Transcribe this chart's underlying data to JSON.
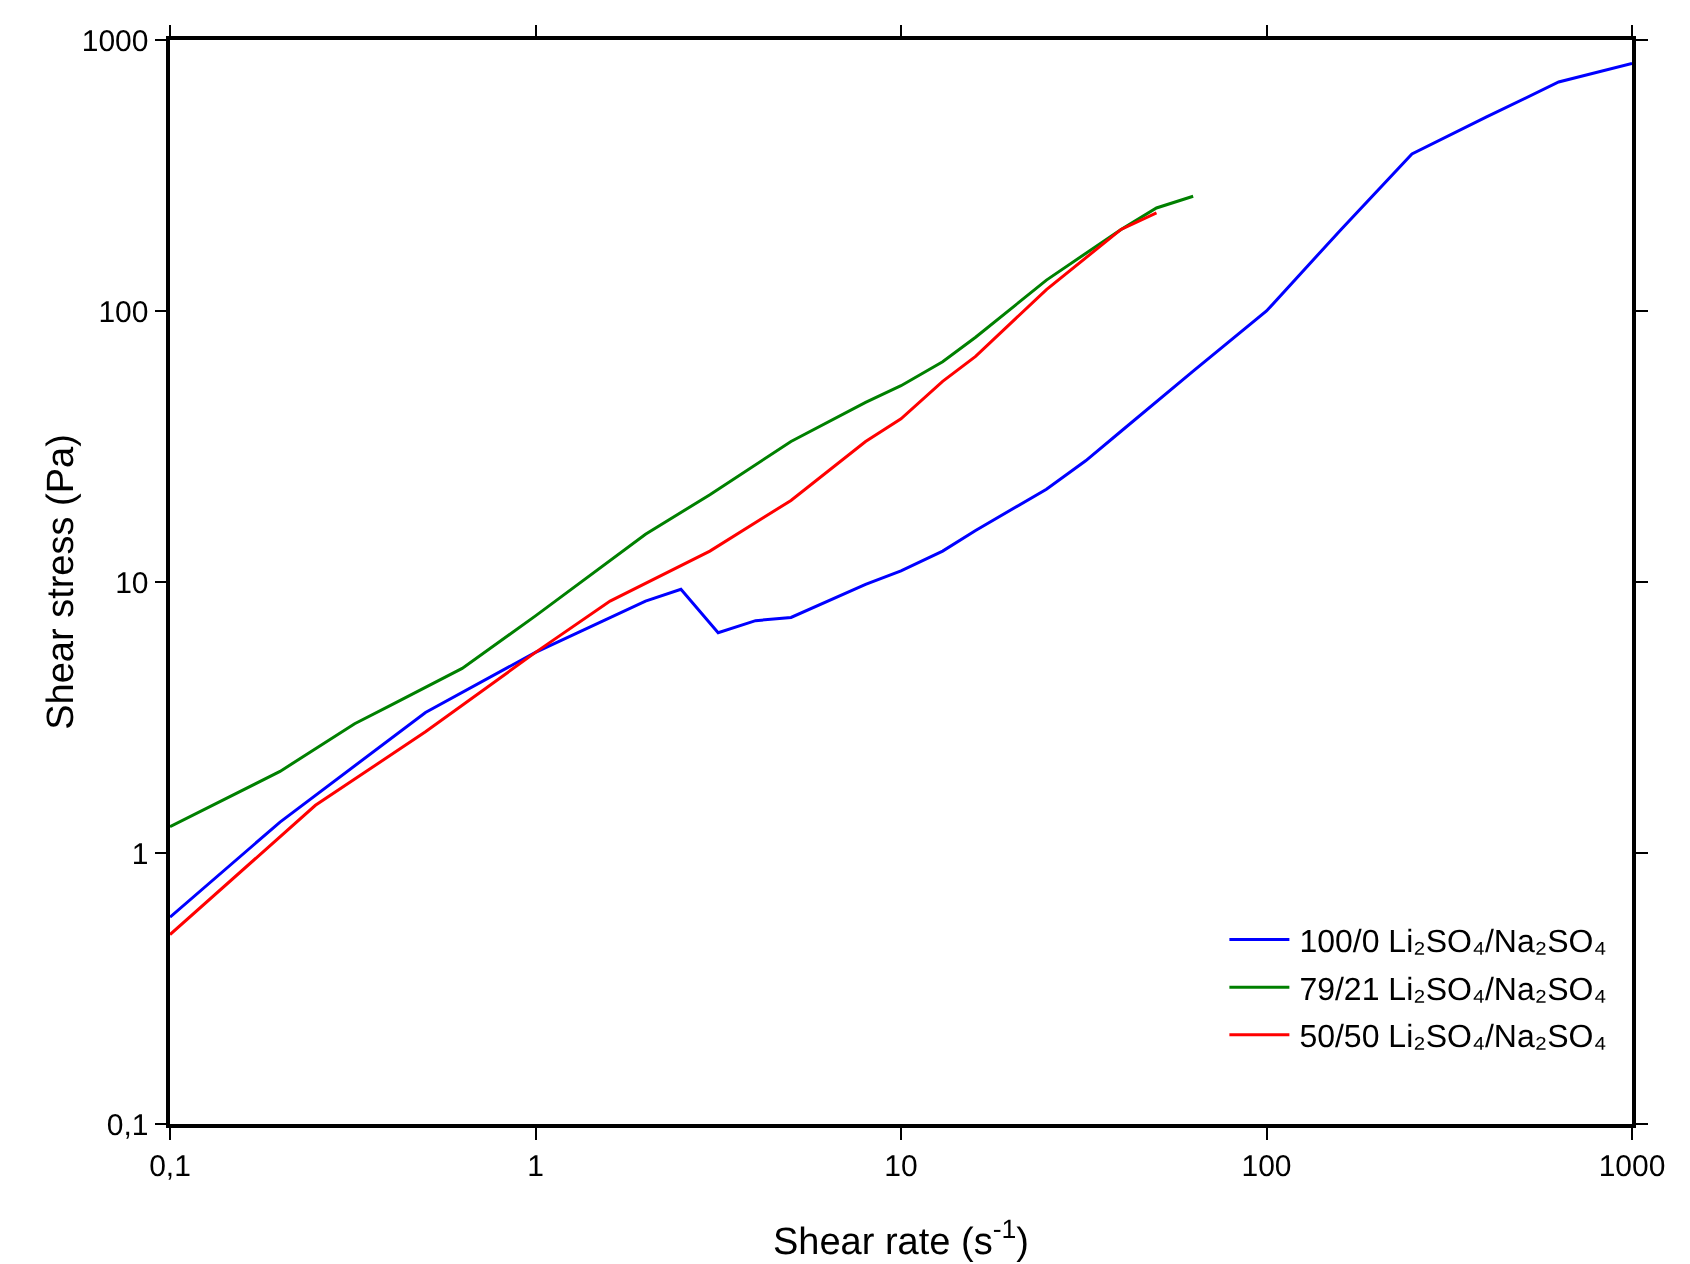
{
  "chart_data": {
    "type": "line",
    "xlabel": "Shear rate (s$^{-1}$)",
    "ylabel": "Shear stress (Pa)",
    "log": "xy",
    "grid": false,
    "legend": "bottom right",
    "line_style": "solid",
    "marker": "none",
    "xlim": [
      0.1,
      1000
    ],
    "ylim": [
      0.1,
      1000
    ],
    "xticks": [
      {
        "value": 0.1,
        "label": "0,1"
      },
      1,
      10,
      100,
      1000
    ],
    "yticks": [
      {
        "value": 0.1,
        "label": "0,1"
      },
      1,
      10,
      100,
      1000
    ],
    "series": [
      {
        "name": "100/0 Li₂SO₄/Na₂SO₄",
        "color": "#0000ff",
        "x": [
          0.1,
          0.2,
          0.5,
          1,
          2,
          2.5,
          3.16,
          4,
          5,
          8,
          10,
          13,
          16,
          25,
          32,
          40,
          63,
          100,
          160,
          250,
          400,
          630,
          1000
        ],
        "values": [
          0.58,
          1.3,
          3.3,
          5.5,
          8.5,
          9.4,
          6.5,
          7.2,
          7.4,
          9.8,
          11,
          13,
          15.5,
          22,
          28,
          36,
          60,
          100,
          200,
          380,
          520,
          700,
          820
        ]
      },
      {
        "name": "79/21 Li₂SO₄/Na₂SO₄",
        "color": "#008000",
        "x": [
          0.1,
          0.2,
          0.32,
          0.4,
          0.63,
          1,
          2,
          3,
          5,
          8,
          10,
          13,
          16,
          25,
          40,
          50,
          63
        ],
        "values": [
          1.25,
          2,
          3,
          3.5,
          4.8,
          7.5,
          15,
          21,
          33,
          46,
          53,
          65,
          80,
          130,
          200,
          240,
          265
        ]
      },
      {
        "name": "50/50 Li₂SO₄/Na₂SO₄",
        "color": "#ff0000",
        "x": [
          0.1,
          0.25,
          0.5,
          1,
          1.6,
          3,
          5,
          8,
          10,
          13,
          16,
          25,
          40,
          50
        ],
        "values": [
          0.5,
          1.5,
          2.8,
          5.5,
          8.5,
          13,
          20,
          33,
          40,
          55,
          68,
          120,
          200,
          230
        ]
      }
    ]
  }
}
